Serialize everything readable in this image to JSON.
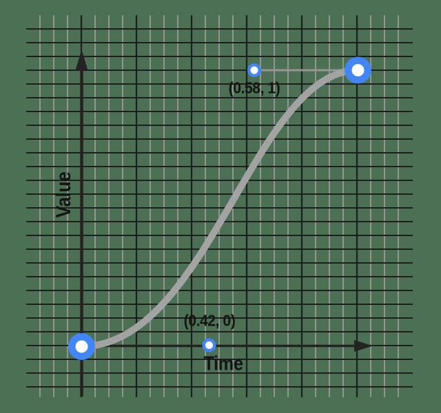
{
  "figure": {
    "xlabel": "Time",
    "ylabel": "Value",
    "control_point_1_label": "(0.42, 0)",
    "control_point_2_label": "(0.58, 1)"
  },
  "chart_data": {
    "type": "line",
    "curve": "cubic-bezier",
    "xlabel": "Time",
    "ylabel": "Value",
    "xlim": [
      0,
      1
    ],
    "ylim": [
      0,
      1
    ],
    "grid": true,
    "legend": false,
    "endpoints": [
      [
        0,
        0
      ],
      [
        1,
        1
      ]
    ],
    "control_points": [
      [
        0.42,
        0
      ],
      [
        0.58,
        1
      ]
    ],
    "annotations": [
      "(0.42, 0)",
      "(0.58, 1)"
    ]
  },
  "colors": {
    "background": "#4b7054",
    "grid_minor": "#9a9a9a",
    "grid_major": "#1e1e1e",
    "axis": "#232323",
    "curve_gray": "#a3a3a3",
    "handle_gray": "#969696",
    "accent_blue": "#4285f4",
    "dot_center": "#ffffff",
    "text": "#151515"
  }
}
